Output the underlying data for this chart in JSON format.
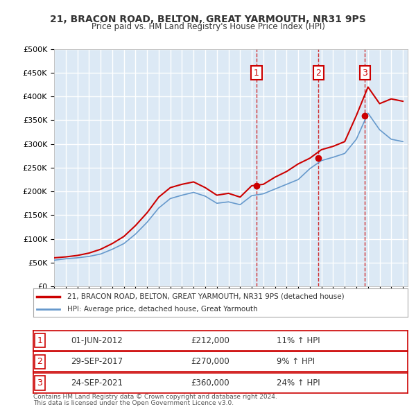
{
  "title": "21, BRACON ROAD, BELTON, GREAT YARMOUTH, NR31 9PS",
  "subtitle": "Price paid vs. HM Land Registry's House Price Index (HPI)",
  "ylabel_ticks": [
    "£0",
    "£50K",
    "£100K",
    "£150K",
    "£200K",
    "£250K",
    "£300K",
    "£350K",
    "£400K",
    "£450K",
    "£500K"
  ],
  "ytick_vals": [
    0,
    50000,
    100000,
    150000,
    200000,
    250000,
    300000,
    350000,
    400000,
    450000,
    500000
  ],
  "ylim": [
    0,
    500000
  ],
  "background_color": "#dce9f5",
  "plot_bg": "#dce9f5",
  "grid_color": "#ffffff",
  "sale_dates": [
    "2012-06-01",
    "2017-09-29",
    "2021-09-24"
  ],
  "sale_prices": [
    212000,
    270000,
    360000
  ],
  "sale_labels": [
    "1",
    "2",
    "3"
  ],
  "sale_pct": [
    "11% ↑ HPI",
    "9% ↑ HPI",
    "24% ↑ HPI"
  ],
  "sale_date_str": [
    "01-JUN-2012",
    "29-SEP-2017",
    "24-SEP-2021"
  ],
  "red_line_color": "#cc0000",
  "blue_line_color": "#6699cc",
  "legend_label_red": "21, BRACON ROAD, BELTON, GREAT YARMOUTH, NR31 9PS (detached house)",
  "legend_label_blue": "HPI: Average price, detached house, Great Yarmouth",
  "footer1": "Contains HM Land Registry data © Crown copyright and database right 2024.",
  "footer2": "This data is licensed under the Open Government Licence v3.0.",
  "hpi_years": [
    1995,
    1996,
    1997,
    1998,
    1999,
    2000,
    2001,
    2002,
    2003,
    2004,
    2005,
    2006,
    2007,
    2008,
    2009,
    2010,
    2011,
    2012,
    2013,
    2014,
    2015,
    2016,
    2017,
    2018,
    2019,
    2020,
    2021,
    2022,
    2023,
    2024,
    2025
  ],
  "hpi_months": [
    1,
    1,
    1,
    1,
    1,
    1,
    1,
    1,
    1,
    1,
    1,
    1,
    1,
    1,
    1,
    1,
    1,
    1,
    1,
    1,
    1,
    1,
    1,
    1,
    1,
    1,
    1,
    1,
    1,
    1,
    1
  ],
  "hpi_values": [
    55000,
    58000,
    60000,
    63000,
    68000,
    78000,
    90000,
    110000,
    135000,
    165000,
    185000,
    192000,
    198000,
    190000,
    175000,
    178000,
    172000,
    191000,
    195000,
    205000,
    215000,
    225000,
    248000,
    265000,
    272000,
    280000,
    310000,
    365000,
    330000,
    310000,
    305000
  ],
  "red_hpi_years": [
    1995,
    1996,
    1997,
    1998,
    1999,
    2000,
    2001,
    2002,
    2003,
    2004,
    2005,
    2006,
    2007,
    2008,
    2009,
    2010,
    2011,
    2012,
    2013,
    2014,
    2015,
    2016,
    2017,
    2018,
    2019,
    2020,
    2021,
    2022,
    2023,
    2024,
    2025
  ],
  "red_values": [
    60000,
    62000,
    65000,
    70000,
    78000,
    90000,
    105000,
    128000,
    155000,
    188000,
    208000,
    215000,
    220000,
    208000,
    192000,
    196000,
    188000,
    212000,
    215000,
    230000,
    242000,
    258000,
    270000,
    288000,
    295000,
    305000,
    360000,
    420000,
    385000,
    395000,
    390000
  ]
}
